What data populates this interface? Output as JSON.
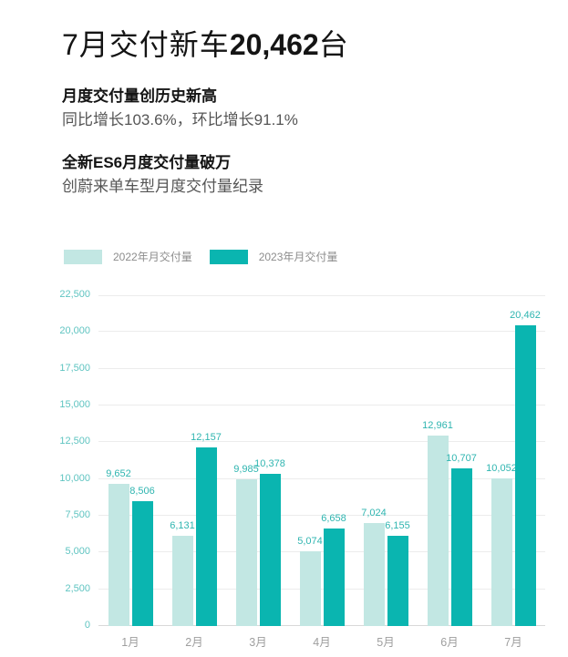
{
  "header": {
    "title_prefix": "7月交付新车",
    "title_number": "20,462",
    "title_suffix": "台"
  },
  "highlights": [
    {
      "heading": "月度交付量创历史新高",
      "body": "同比增长103.6%，环比增长91.1%"
    },
    {
      "heading": "全新ES6月度交付量破万",
      "body": "创蔚来单车型月度交付量纪录"
    }
  ],
  "legend": [
    {
      "label": "2022年月交付量",
      "color": "#c2e7e3"
    },
    {
      "label": "2023年月交付量",
      "color": "#0ab5b0"
    }
  ],
  "colors": {
    "series_2022": "#c2e7e3",
    "series_2023": "#0ab5b0",
    "value_label": "#2fb5b0",
    "y_axis_label": "#5fc4c1",
    "x_axis_label": "#9e9e9e",
    "gridline": "#ececec",
    "baseline": "#d8d8d8"
  },
  "chart_data": {
    "type": "bar",
    "categories": [
      "1月",
      "2月",
      "3月",
      "4月",
      "5月",
      "6月",
      "7月"
    ],
    "series": [
      {
        "name": "2022年月交付量",
        "color": "#c2e7e3",
        "values": [
          9652,
          6131,
          9985,
          5074,
          7024,
          12961,
          10052
        ]
      },
      {
        "name": "2023年月交付量",
        "color": "#0ab5b0",
        "values": [
          8506,
          12157,
          10378,
          6658,
          6155,
          10707,
          20462
        ]
      }
    ],
    "ylim": [
      0,
      22500
    ],
    "ytick_step": 2500,
    "yticks": [
      "0",
      "2,500",
      "5,000",
      "7,500",
      "10,000",
      "12,500",
      "15,000",
      "17,500",
      "20,000",
      "22,500"
    ],
    "grid": true,
    "legend_position": "top-left",
    "value_labels": true,
    "title": "7月交付新车20,462台"
  }
}
